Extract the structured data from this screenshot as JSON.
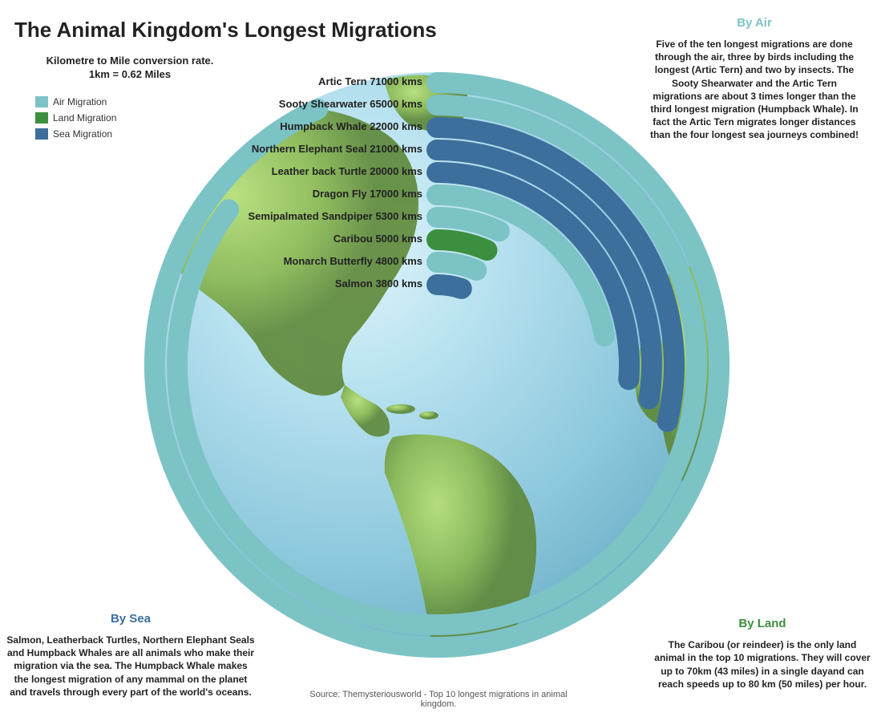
{
  "title": "The Animal Kingdom's Longest Migrations",
  "conversion": {
    "line1": "Kilometre to Mile conversion rate.",
    "line2": "1km = 0.62 Miles"
  },
  "colors": {
    "air": "#7cc3c6",
    "land": "#3b8f3e",
    "sea": "#3c6f9c",
    "background": "#ffffff",
    "text": "#222222",
    "globe_light": "#e0f4fc",
    "globe_dark": "#4a8fa8",
    "land_light": "#9bcf5e",
    "land_dark": "#6b9a44"
  },
  "legend": {
    "items": [
      {
        "label": "Air Migration",
        "key": "air"
      },
      {
        "label": "Land Migration",
        "key": "land"
      },
      {
        "label": "Sea Migration",
        "key": "sea"
      }
    ]
  },
  "chart": {
    "type": "radial-bar",
    "unit": "kms",
    "max_value": 71000,
    "max_angle_deg": 335,
    "outer_radius": 365,
    "inner_radius": 85,
    "ring_thickness": 26,
    "ring_gap": 2,
    "data": [
      {
        "name": "Artic Tern",
        "value": 71000,
        "category": "air"
      },
      {
        "name": "Sooty Shearwater",
        "value": 65000,
        "category": "air"
      },
      {
        "name": "Humpback Whale",
        "value": 22000,
        "category": "sea"
      },
      {
        "name": "Northern Elephant Seal",
        "value": 21000,
        "category": "sea"
      },
      {
        "name": "Leather back Turtle",
        "value": 20000,
        "category": "sea"
      },
      {
        "name": "Dragon Fly",
        "value": 17000,
        "category": "air"
      },
      {
        "name": "Semipalmated Sandpiper",
        "value": 5300,
        "category": "air"
      },
      {
        "name": "Caribou",
        "value": 5000,
        "category": "land"
      },
      {
        "name": "Monarch Butterfly",
        "value": 4800,
        "category": "air"
      },
      {
        "name": "Salmon",
        "value": 3800,
        "category": "sea"
      }
    ]
  },
  "callouts": {
    "air": {
      "title": "By Air",
      "title_color": "#7cc3c6",
      "body": "Five of the ten longest migrations are done through the air, three by birds including the longest (Artic Tern) and two by insects. The Sooty Shearwater and the Artic Tern migrations are about 3 times longer than the third longest migration (Humpback Whale). In fact the Artic Tern migrates longer distances than the four longest sea journeys combined!"
    },
    "sea": {
      "title": "By Sea",
      "title_color": "#3c6f9c",
      "body": "Salmon, Leatherback Turtles, Northern Elephant Seals and Humpback Whales are all animals who make their migration via the sea. The Humpback Whale makes the longest migration of any mammal on the planet and travels through every part of the world's oceans."
    },
    "land": {
      "title": "By Land",
      "title_color": "#3b8f3e",
      "body": "The Caribou (or reindeer) is the only land animal in the top 10 migrations. They will cover up to 70km (43 miles) in a single dayand can reach speeds up to 80 km (50 miles) per hour."
    }
  },
  "source": "Source: Themysteriousworld - Top 10 longest migrations in animal kingdom."
}
